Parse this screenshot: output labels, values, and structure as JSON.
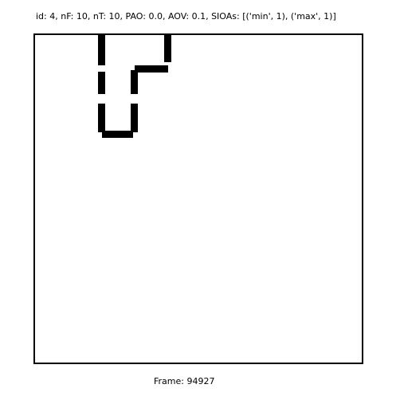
{
  "header": {
    "info_text": "id: 4, nF: 10, nT: 10, PAO: 0.0, AOV: 0.1, SIOAs: [('min', 1), ('max', 1)]"
  },
  "footer": {
    "frame_text": "Frame: 94927"
  },
  "colors": {
    "background": "#ffffff",
    "foreground": "#000000"
  }
}
